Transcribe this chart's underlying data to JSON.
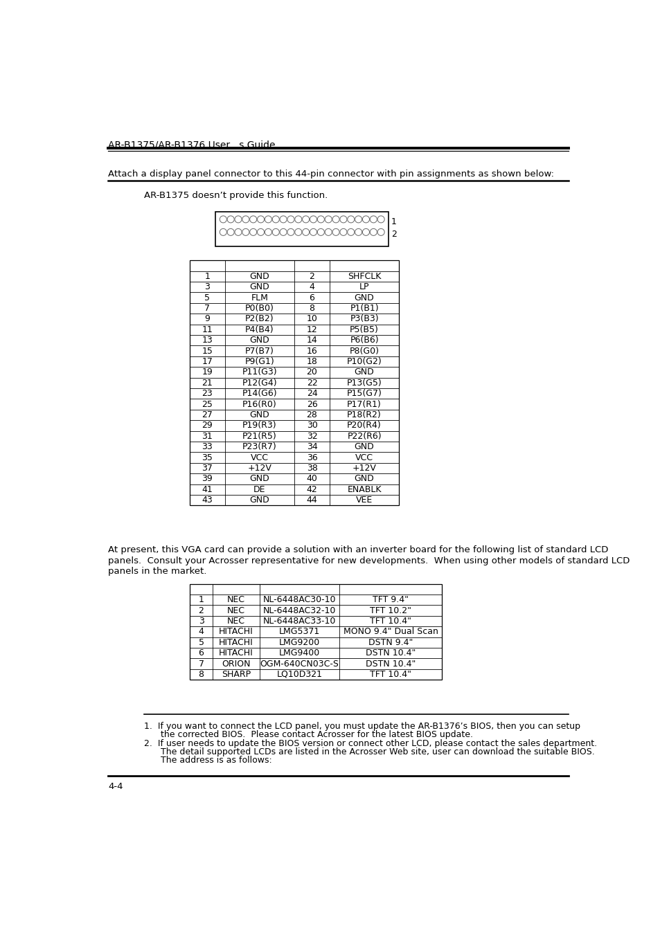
{
  "header_title": "AR-B1375/AR-B1376 User   s Guide",
  "intro_text": "Attach a display panel connector to this 44-pin connector with pin assignments as shown below:",
  "note_text": "AR-B1375 doesn’t provide this function.",
  "connector_rows": 2,
  "connector_cols": 22,
  "pin_table": [
    [
      "1",
      "GND",
      "2",
      "SHFCLK"
    ],
    [
      "3",
      "GND",
      "4",
      "LP"
    ],
    [
      "5",
      "FLM",
      "6",
      "GND"
    ],
    [
      "7",
      "P0(B0)",
      "8",
      "P1(B1)"
    ],
    [
      "9",
      "P2(B2)",
      "10",
      "P3(B3)"
    ],
    [
      "11",
      "P4(B4)",
      "12",
      "P5(B5)"
    ],
    [
      "13",
      "GND",
      "14",
      "P6(B6)"
    ],
    [
      "15",
      "P7(B7)",
      "16",
      "P8(G0)"
    ],
    [
      "17",
      "P9(G1)",
      "18",
      "P10(G2)"
    ],
    [
      "19",
      "P11(G3)",
      "20",
      "GND"
    ],
    [
      "21",
      "P12(G4)",
      "22",
      "P13(G5)"
    ],
    [
      "23",
      "P14(G6)",
      "24",
      "P15(G7)"
    ],
    [
      "25",
      "P16(R0)",
      "26",
      "P17(R1)"
    ],
    [
      "27",
      "GND",
      "28",
      "P18(R2)"
    ],
    [
      "29",
      "P19(R3)",
      "30",
      "P20(R4)"
    ],
    [
      "31",
      "P21(R5)",
      "32",
      "P22(R6)"
    ],
    [
      "33",
      "P23(R7)",
      "34",
      "GND"
    ],
    [
      "35",
      "VCC",
      "36",
      "VCC"
    ],
    [
      "37",
      "+12V",
      "38",
      "+12V"
    ],
    [
      "39",
      "GND",
      "40",
      "GND"
    ],
    [
      "41",
      "DE",
      "42",
      "ENABLK"
    ],
    [
      "43",
      "GND",
      "44",
      "VEE"
    ]
  ],
  "pin_table_has_header_row": true,
  "lcd_table": [
    [
      "1",
      "NEC",
      "NL-6448AC30-10",
      "TFT 9.4\""
    ],
    [
      "2",
      "NEC",
      "NL-6448AC32-10",
      "TFT 10.2\""
    ],
    [
      "3",
      "NEC",
      "NL-6448AC33-10",
      "TFT 10.4\""
    ],
    [
      "4",
      "HITACHI",
      "LMG5371",
      "MONO 9.4\" Dual Scan"
    ],
    [
      "5",
      "HITACHI",
      "LMG9200",
      "DSTN 9.4\""
    ],
    [
      "6",
      "HITACHI",
      "LMG9400",
      "DSTN 10.4\""
    ],
    [
      "7",
      "ORION",
      "OGM-640CN03C-S",
      "DSTN 10.4\""
    ],
    [
      "8",
      "SHARP",
      "LQ10D321",
      "TFT 10.4\""
    ]
  ],
  "para_line1": "At present, this VGA card can provide a solution with an inverter board for the following list of standard LCD",
  "para_line2": "panels.  Consult your Acrosser representative for new developments.  When using other models of standard LCD",
  "para_line3": "panels in the market.",
  "footnote1_line1": "1.  If you want to connect the LCD panel, you must update the AR-B1376’s BIOS, then you can setup",
  "footnote1_line2": "      the corrected BIOS.  Please contact Acrosser for the latest BIOS update.",
  "footnote2_line1": "2.  If user needs to update the BIOS version or connect other LCD, please contact the sales department.",
  "footnote2_line2": "      The detail supported LCDs are listed in the Acrosser Web site, user can download the suitable BIOS.",
  "footnote2_line3": "      The address is as follows:",
  "footer_text": "4-4",
  "bg_color": "#ffffff",
  "text_color": "#000000"
}
